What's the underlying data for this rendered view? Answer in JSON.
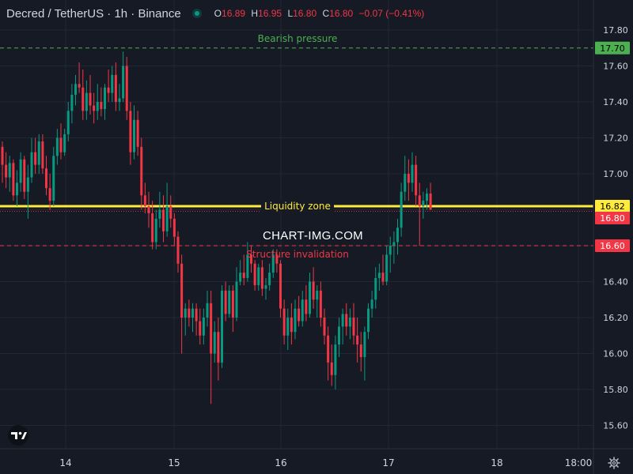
{
  "header": {
    "symbol_title": "Decred / TetherUS · 1h · Binance",
    "ohlc": [
      {
        "key": "O",
        "value": "16.89"
      },
      {
        "key": "H",
        "value": "16.95"
      },
      {
        "key": "L",
        "value": "16.80"
      },
      {
        "key": "C",
        "value": "16.80"
      }
    ],
    "change": "−0.07 (−0.41%)"
  },
  "watermark": "CHART-IMG.COM",
  "colors": {
    "background": "#161a25",
    "grid": "#232733",
    "up": "#089981",
    "down": "#f23645",
    "text": "#d1d4dc",
    "bearish": "#4caf50",
    "liquidity": "#ffeb3b",
    "invalidation": "#f23645"
  },
  "icons": {
    "logo": "tradingview-logo-icon",
    "settings": "gear-icon",
    "status": "market-open-dot-icon"
  },
  "chart_data": {
    "type": "candlestick",
    "y_axis": {
      "ticks": [
        "17.80",
        "17.60",
        "17.40",
        "17.20",
        "17.00",
        "16.80",
        "16.60",
        "16.40",
        "16.20",
        "16.00",
        "15.80",
        "15.60"
      ],
      "range": [
        15.55,
        17.88
      ]
    },
    "x_axis": {
      "ticks": [
        "14",
        "15",
        "16",
        "17",
        "18",
        "18:00"
      ]
    },
    "grid": true,
    "price_labels": [
      {
        "value": 17.7,
        "text": "17.70",
        "bg": "#4caf50",
        "fg": "#000000"
      },
      {
        "value": 16.82,
        "text": "16.82",
        "bg": "#ffeb3b",
        "fg": "#000000"
      },
      {
        "value": 16.8,
        "text": "16.80",
        "bg": "#f23645",
        "fg": "#ffffff"
      },
      {
        "value": 16.6,
        "text": "16.60",
        "bg": "#f23645",
        "fg": "#ffffff"
      }
    ],
    "levels": [
      {
        "name": "Bearish pressure",
        "value": 17.7,
        "color": "#4caf50",
        "style": "dashed"
      },
      {
        "name": "Liquidity zone",
        "value": 16.82,
        "color": "#ffeb3b",
        "style": "solid"
      },
      {
        "name": "Structure invalidation",
        "value": 16.6,
        "color": "#f23645",
        "style": "dashed"
      }
    ],
    "last_price": 16.8,
    "candles": [
      [
        17.15,
        17.18,
        16.95,
        17.05
      ],
      [
        17.05,
        17.12,
        16.92,
        16.98
      ],
      [
        16.98,
        17.1,
        16.9,
        17.06
      ],
      [
        17.06,
        17.08,
        16.85,
        16.88
      ],
      [
        16.88,
        17.02,
        16.82,
        16.95
      ],
      [
        16.95,
        17.12,
        16.9,
        17.08
      ],
      [
        17.08,
        17.1,
        16.86,
        16.9
      ],
      [
        16.9,
        17.05,
        16.75,
        16.98
      ],
      [
        16.98,
        17.2,
        16.95,
        17.12
      ],
      [
        17.12,
        17.2,
        17.0,
        17.05
      ],
      [
        17.05,
        17.22,
        17.0,
        17.18
      ],
      [
        17.18,
        17.22,
        17.0,
        17.03
      ],
      [
        17.03,
        17.1,
        16.88,
        16.92
      ],
      [
        16.92,
        17.0,
        16.8,
        16.85
      ],
      [
        16.85,
        17.15,
        16.82,
        17.1
      ],
      [
        17.1,
        17.25,
        17.05,
        17.2
      ],
      [
        17.2,
        17.28,
        17.08,
        17.12
      ],
      [
        17.12,
        17.25,
        17.1,
        17.22
      ],
      [
        17.22,
        17.4,
        17.18,
        17.35
      ],
      [
        17.35,
        17.5,
        17.28,
        17.44
      ],
      [
        17.44,
        17.55,
        17.38,
        17.5
      ],
      [
        17.5,
        17.62,
        17.45,
        17.48
      ],
      [
        17.48,
        17.58,
        17.3,
        17.35
      ],
      [
        17.35,
        17.52,
        17.3,
        17.45
      ],
      [
        17.45,
        17.55,
        17.33,
        17.38
      ],
      [
        17.38,
        17.45,
        17.28,
        17.35
      ],
      [
        17.35,
        17.5,
        17.3,
        17.4
      ],
      [
        17.4,
        17.48,
        17.32,
        17.36
      ],
      [
        17.36,
        17.5,
        17.3,
        17.48
      ],
      [
        17.48,
        17.58,
        17.4,
        17.45
      ],
      [
        17.45,
        17.6,
        17.4,
        17.55
      ],
      [
        17.55,
        17.62,
        17.35,
        17.4
      ],
      [
        17.4,
        17.5,
        17.35,
        17.42
      ],
      [
        17.42,
        17.68,
        17.4,
        17.6
      ],
      [
        17.6,
        17.65,
        17.3,
        17.35
      ],
      [
        17.35,
        17.4,
        17.05,
        17.12
      ],
      [
        17.12,
        17.38,
        17.08,
        17.3
      ],
      [
        17.3,
        17.35,
        17.1,
        17.15
      ],
      [
        17.15,
        17.2,
        16.8,
        16.88
      ],
      [
        16.88,
        16.95,
        16.78,
        16.82
      ],
      [
        16.82,
        16.9,
        16.7,
        16.78
      ],
      [
        16.78,
        16.85,
        16.58,
        16.62
      ],
      [
        16.62,
        16.8,
        16.58,
        16.75
      ],
      [
        16.75,
        16.9,
        16.7,
        16.8
      ],
      [
        16.8,
        16.88,
        16.62,
        16.68
      ],
      [
        16.68,
        16.95,
        16.65,
        16.82
      ],
      [
        16.82,
        16.88,
        16.7,
        16.75
      ],
      [
        16.75,
        16.78,
        16.6,
        16.65
      ],
      [
        16.65,
        16.68,
        16.45,
        16.5
      ],
      [
        16.5,
        16.55,
        16.0,
        16.2
      ],
      [
        16.2,
        16.28,
        16.1,
        16.25
      ],
      [
        16.25,
        16.3,
        16.15,
        16.2
      ],
      [
        16.2,
        16.28,
        16.12,
        16.25
      ],
      [
        16.25,
        16.28,
        16.1,
        16.18
      ],
      [
        16.18,
        16.25,
        16.05,
        16.1
      ],
      [
        16.1,
        16.25,
        16.05,
        16.2
      ],
      [
        16.2,
        16.35,
        16.15,
        16.28
      ],
      [
        16.28,
        16.35,
        15.72,
        16.0
      ],
      [
        16.0,
        16.18,
        15.95,
        16.12
      ],
      [
        16.12,
        16.2,
        15.85,
        15.95
      ],
      [
        15.95,
        16.38,
        15.92,
        16.35
      ],
      [
        16.35,
        16.4,
        16.18,
        16.22
      ],
      [
        16.22,
        16.38,
        16.2,
        16.35
      ],
      [
        16.35,
        16.38,
        16.12,
        16.2
      ],
      [
        16.2,
        16.48,
        16.18,
        16.4
      ],
      [
        16.4,
        16.52,
        16.38,
        16.45
      ],
      [
        16.45,
        16.55,
        16.38,
        16.42
      ],
      [
        16.42,
        16.62,
        16.4,
        16.55
      ],
      [
        16.55,
        16.6,
        16.45,
        16.5
      ],
      [
        16.5,
        16.52,
        16.35,
        16.38
      ],
      [
        16.38,
        16.5,
        16.35,
        16.48
      ],
      [
        16.48,
        16.52,
        16.32,
        16.36
      ],
      [
        16.36,
        16.42,
        16.3,
        16.38
      ],
      [
        16.38,
        16.5,
        16.35,
        16.45
      ],
      [
        16.45,
        16.58,
        16.42,
        16.55
      ],
      [
        16.55,
        16.58,
        16.45,
        16.5
      ],
      [
        16.5,
        16.52,
        16.2,
        16.25
      ],
      [
        16.25,
        16.3,
        16.05,
        16.1
      ],
      [
        16.1,
        16.25,
        16.02,
        16.2
      ],
      [
        16.2,
        16.28,
        16.05,
        16.12
      ],
      [
        16.12,
        16.3,
        16.08,
        16.25
      ],
      [
        16.25,
        16.32,
        16.15,
        16.18
      ],
      [
        16.18,
        16.35,
        16.15,
        16.3
      ],
      [
        16.3,
        16.38,
        16.18,
        16.22
      ],
      [
        16.22,
        16.45,
        16.2,
        16.4
      ],
      [
        16.4,
        16.48,
        16.25,
        16.3
      ],
      [
        16.3,
        16.38,
        16.2,
        16.35
      ],
      [
        16.35,
        16.4,
        16.15,
        16.2
      ],
      [
        16.2,
        16.25,
        16.05,
        16.1
      ],
      [
        16.1,
        16.15,
        15.85,
        15.95
      ],
      [
        15.95,
        16.05,
        15.82,
        15.88
      ],
      [
        15.88,
        16.1,
        15.8,
        16.05
      ],
      [
        16.05,
        16.2,
        15.98,
        16.15
      ],
      [
        16.15,
        16.25,
        16.05,
        16.22
      ],
      [
        16.22,
        16.28,
        16.1,
        16.15
      ],
      [
        16.15,
        16.25,
        16.08,
        16.2
      ],
      [
        16.2,
        16.28,
        16.05,
        16.1
      ],
      [
        16.1,
        16.2,
        15.95,
        16.05
      ],
      [
        16.05,
        16.12,
        15.9,
        15.98
      ],
      [
        15.98,
        16.15,
        15.85,
        16.12
      ],
      [
        16.12,
        16.28,
        16.08,
        16.25
      ],
      [
        16.25,
        16.35,
        16.2,
        16.3
      ],
      [
        16.3,
        16.48,
        16.25,
        16.42
      ],
      [
        16.42,
        16.5,
        16.35,
        16.45
      ],
      [
        16.45,
        16.55,
        16.38,
        16.4
      ],
      [
        16.4,
        16.6,
        16.38,
        16.55
      ],
      [
        16.55,
        16.65,
        16.45,
        16.6
      ],
      [
        16.6,
        16.68,
        16.5,
        16.62
      ],
      [
        16.62,
        16.75,
        16.55,
        16.7
      ],
      [
        16.7,
        16.95,
        16.65,
        16.9
      ],
      [
        16.9,
        17.1,
        16.85,
        17.0
      ],
      [
        17.0,
        17.08,
        16.85,
        16.95
      ],
      [
        16.95,
        17.12,
        16.9,
        17.05
      ],
      [
        17.05,
        17.1,
        16.82,
        16.88
      ],
      [
        16.88,
        16.95,
        16.6,
        16.82
      ],
      [
        16.82,
        16.9,
        16.75,
        16.85
      ],
      [
        16.85,
        16.92,
        16.8,
        16.89
      ],
      [
        16.89,
        16.95,
        16.8,
        16.8
      ]
    ]
  }
}
